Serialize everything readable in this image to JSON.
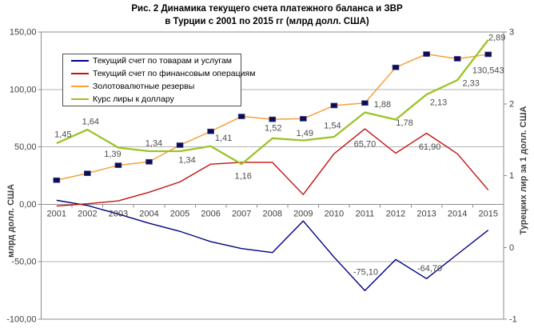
{
  "title": {
    "line1": "Рис. 2 Динамика текущего счета платежного баланса и ЗВР",
    "line2": "в Турции с 2001 по 2015 гг (млрд долл. США)"
  },
  "axes": {
    "left": {
      "title": "млрд долл. США",
      "tick_labels": [
        "150,00",
        "100,00",
        "50,00",
        "0,00",
        "-50,00",
        "-100,00"
      ],
      "tick_values": [
        150,
        100,
        50,
        0,
        -50,
        -100
      ],
      "range": [
        -100,
        150
      ]
    },
    "right": {
      "title": "Турецких лир за 1 долл. США",
      "tick_labels": [
        "3",
        "2",
        "1",
        "0",
        "-1"
      ],
      "tick_values": [
        3,
        2,
        1,
        0,
        -1
      ],
      "range": [
        -1,
        3
      ]
    },
    "x": {
      "tick_labels": [
        "2001",
        "2002",
        "2003",
        "2004",
        "2005",
        "2006",
        "2007",
        "2008",
        "2009",
        "2010",
        "2011",
        "2012",
        "2013",
        "2014",
        "2015"
      ]
    }
  },
  "legend": {
    "items": [
      {
        "label": "Текущий счет по товарам и услугам"
      },
      {
        "label": "Текущий счет по финансовым операциям"
      },
      {
        "label": "Золотовалютные резервы"
      },
      {
        "label": "Курс лиры к доллару"
      }
    ]
  },
  "chart_data": {
    "type": "line",
    "grid": true,
    "legend_position": "top-left-inside",
    "categories": [
      "2001",
      "2002",
      "2003",
      "2004",
      "2005",
      "2006",
      "2007",
      "2008",
      "2009",
      "2010",
      "2011",
      "2012",
      "2013",
      "2014",
      "2015"
    ],
    "series": [
      {
        "name": "Текущий счет по товарам и услугам",
        "axis": "left",
        "color": "#000080",
        "width": 1.4,
        "values": [
          3.5,
          -1,
          -8.5,
          -16.5,
          -23.5,
          -32.5,
          -38.5,
          -42,
          -14.5,
          -46,
          -75.1,
          -48,
          -64.7,
          -43.5,
          -22.5
        ],
        "labels": {
          "10": "-75,10",
          "12": "-64,70"
        }
      },
      {
        "name": "Текущий счет по финансовым операциям",
        "axis": "left",
        "color": "#c51111",
        "width": 1.4,
        "values": [
          -1.5,
          0.5,
          3,
          10.5,
          19.5,
          35,
          36.5,
          36.5,
          8.5,
          44,
          65.7,
          44.5,
          61.9,
          44,
          12.5
        ],
        "labels": {
          "10": "65,70",
          "12": "61,90"
        }
      },
      {
        "name": "Золотовалютные резервы",
        "axis": "left",
        "color": "#f4a23a",
        "width": 1.5,
        "marker": true,
        "values": [
          21,
          27,
          34,
          37,
          51.5,
          63.5,
          76.5,
          74,
          74.5,
          86,
          88.2,
          119.2,
          130.8,
          126.7,
          130.543
        ],
        "labels": {
          "14": "130,543"
        }
      },
      {
        "name": "Курс лиры к доллару",
        "axis": "right",
        "color": "#9ac425",
        "width": 2.3,
        "values": [
          1.45,
          1.64,
          1.39,
          1.34,
          1.34,
          1.41,
          1.16,
          1.52,
          1.49,
          1.54,
          1.88,
          1.78,
          2.13,
          2.33,
          2.89
        ],
        "labels": {
          "0": "1,45",
          "1": "1,64",
          "2": "1,39",
          "3": "1,34",
          "4": "1,34",
          "5": "1,41",
          "6": "1,16",
          "7": "1,52",
          "8": "1,49",
          "9": "1,54",
          "10": "1,88",
          "11": "1,78",
          "12": "2,13",
          "13": "2,33",
          "14": "2,89"
        }
      }
    ],
    "ylabel_left": "млрд долл. США",
    "ylabel_right": "Турецких лир за 1 долл. США",
    "ylim_left": [
      -100,
      150
    ],
    "ylim_right": [
      -1,
      3
    ],
    "marker_color": "#0d0d52"
  }
}
